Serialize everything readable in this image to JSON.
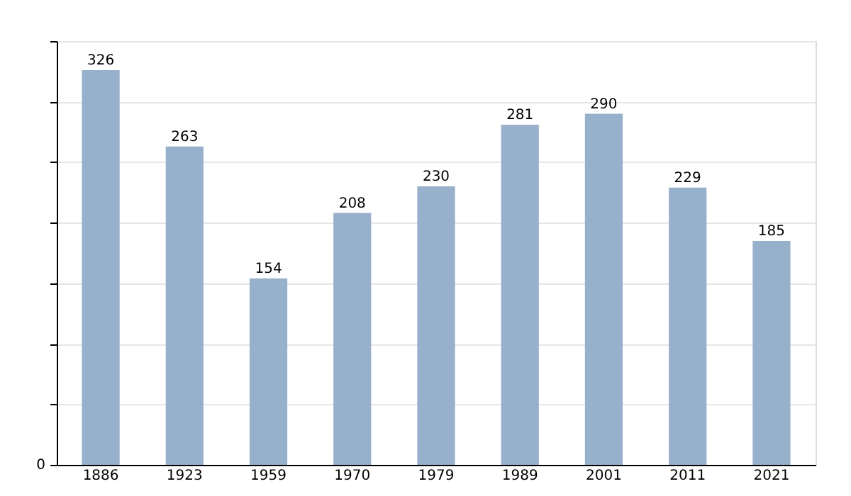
{
  "chart_data": {
    "type": "bar",
    "categories": [
      "1886",
      "1923",
      "1959",
      "1970",
      "1979",
      "1989",
      "2001",
      "2011",
      "2021"
    ],
    "values": [
      326,
      263,
      154,
      208,
      230,
      281,
      290,
      229,
      185
    ],
    "color": "#97b0cb",
    "annotations": [
      "0"
    ],
    "grid": "y",
    "data_labels": true
  }
}
